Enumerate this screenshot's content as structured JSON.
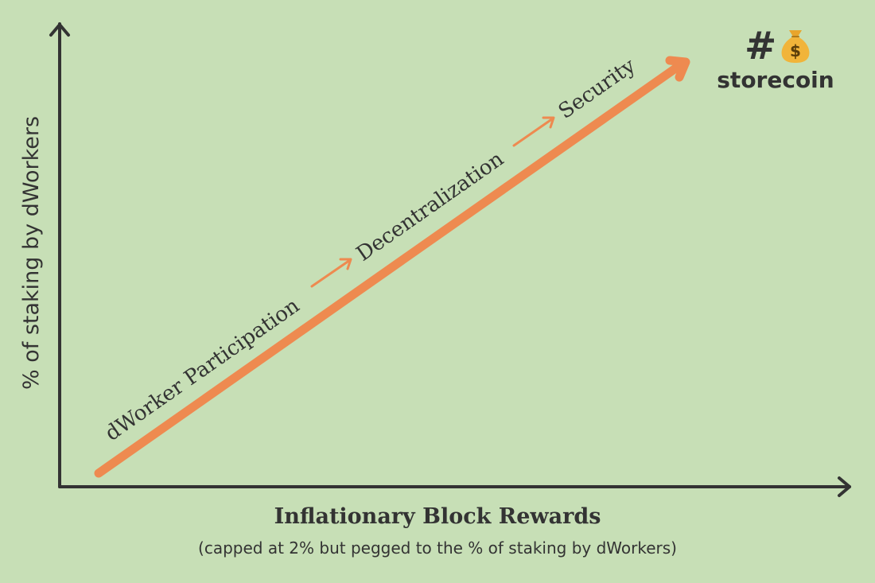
{
  "diagram": {
    "y_axis_label": "% of staking by dWorkers",
    "stages": [
      "dWorker Participation",
      "Decentralization",
      "Security"
    ],
    "x_axis_title": "Inflationary Block Rewards",
    "x_axis_subtitle": "(capped at 2% but pegged to the % of staking by dWorkers)"
  },
  "logo": {
    "symbol": "#",
    "icon": "money-bag-icon",
    "name": "storecoin"
  },
  "colors": {
    "background": "#c7dfb6",
    "axis": "#333333",
    "trend_arrow": "#ee8a50",
    "text": "#333333"
  }
}
